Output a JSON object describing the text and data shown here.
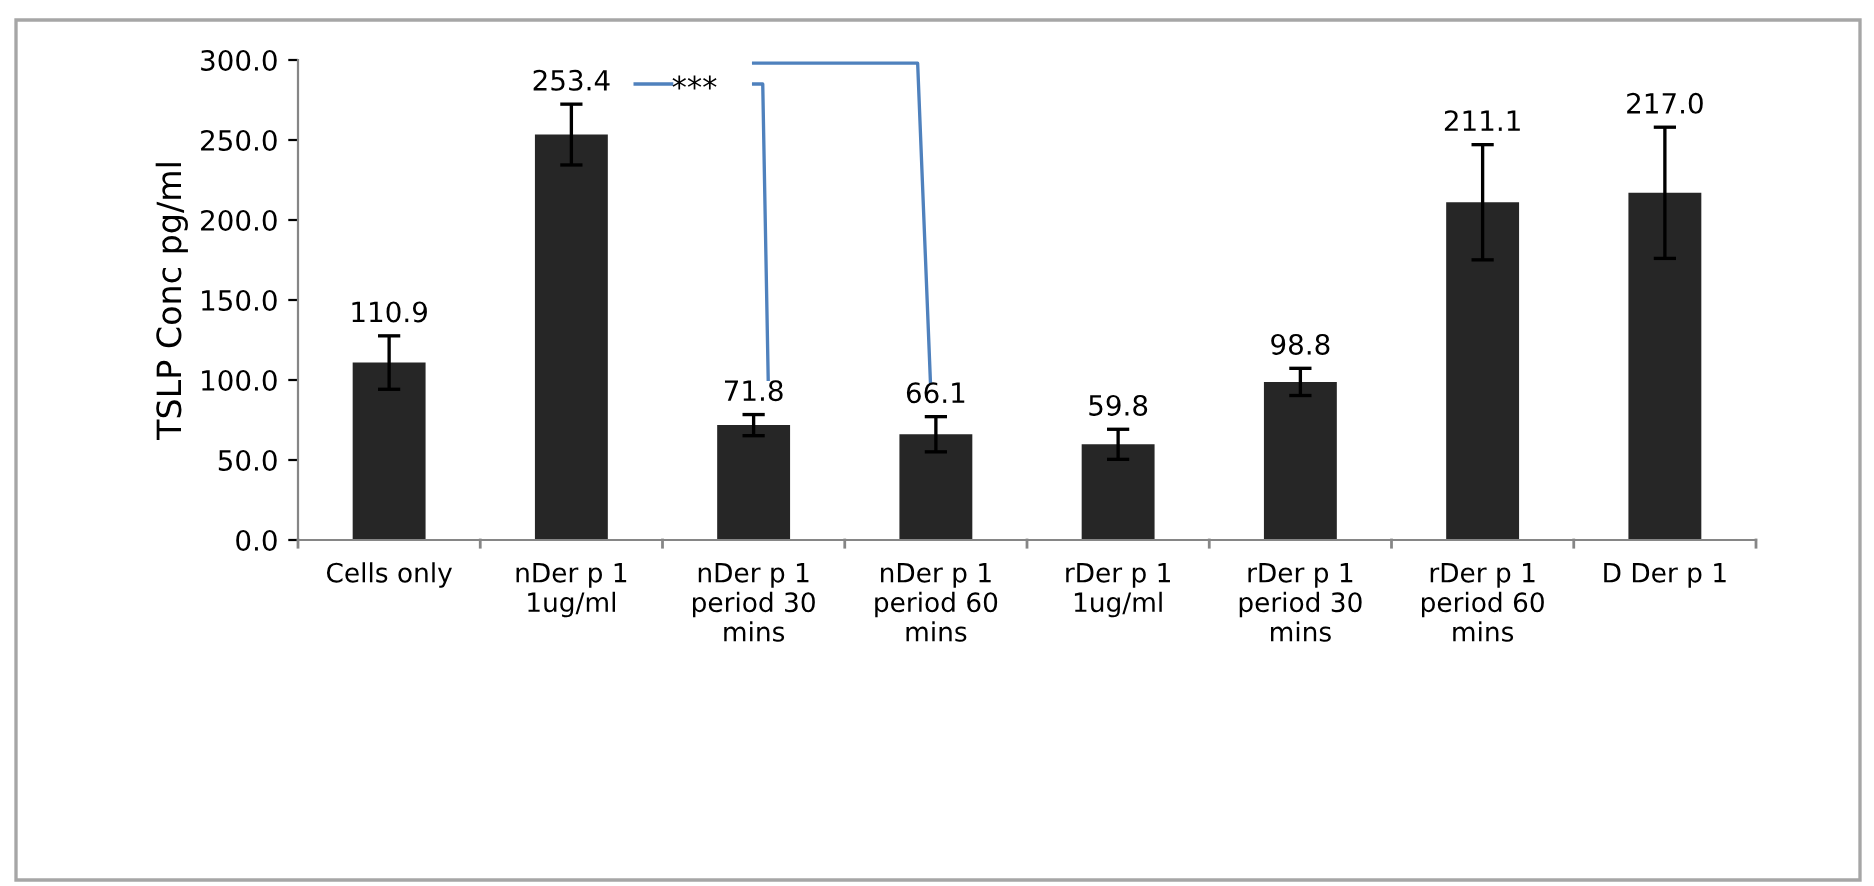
{
  "chart_data": {
    "type": "bar",
    "ylabel": "TSLP Conc pg/ml",
    "categories": [
      "Cells only",
      "nDer p 1\n1ug/ml",
      "nDer p 1\nperiod 30\nmins",
      "nDer p 1\nperiod 60\nmins",
      "rDer p 1\n1ug/ml",
      "rDer p 1\nperiod 30\nmins",
      "rDer p 1\nperiod 60\nmins",
      "D Der p 1"
    ],
    "values": [
      110.9,
      253.4,
      71.8,
      66.1,
      59.8,
      98.8,
      211.1,
      217.0
    ],
    "errors": [
      16.7,
      19,
      6.6,
      11,
      9.4,
      8.5,
      36,
      41
    ],
    "value_labels": [
      "110.9",
      "253.4",
      "71.8",
      "66.1",
      "59.8",
      "98.8",
      "211.1",
      "217.0"
    ],
    "color": "#262626",
    "ylim": [
      0,
      300
    ],
    "yticks": [
      {
        "value": 0,
        "label": "0.0"
      },
      {
        "value": 50,
        "label": "50.0"
      },
      {
        "value": 100,
        "label": "100.0"
      },
      {
        "value": 150,
        "label": "150.0"
      },
      {
        "value": 200,
        "label": "200.0"
      },
      {
        "value": 250,
        "label": "250.0"
      },
      {
        "value": 300,
        "label": "300.0"
      }
    ],
    "annotations": [
      "***"
    ],
    "grid": false,
    "legend": false
  }
}
